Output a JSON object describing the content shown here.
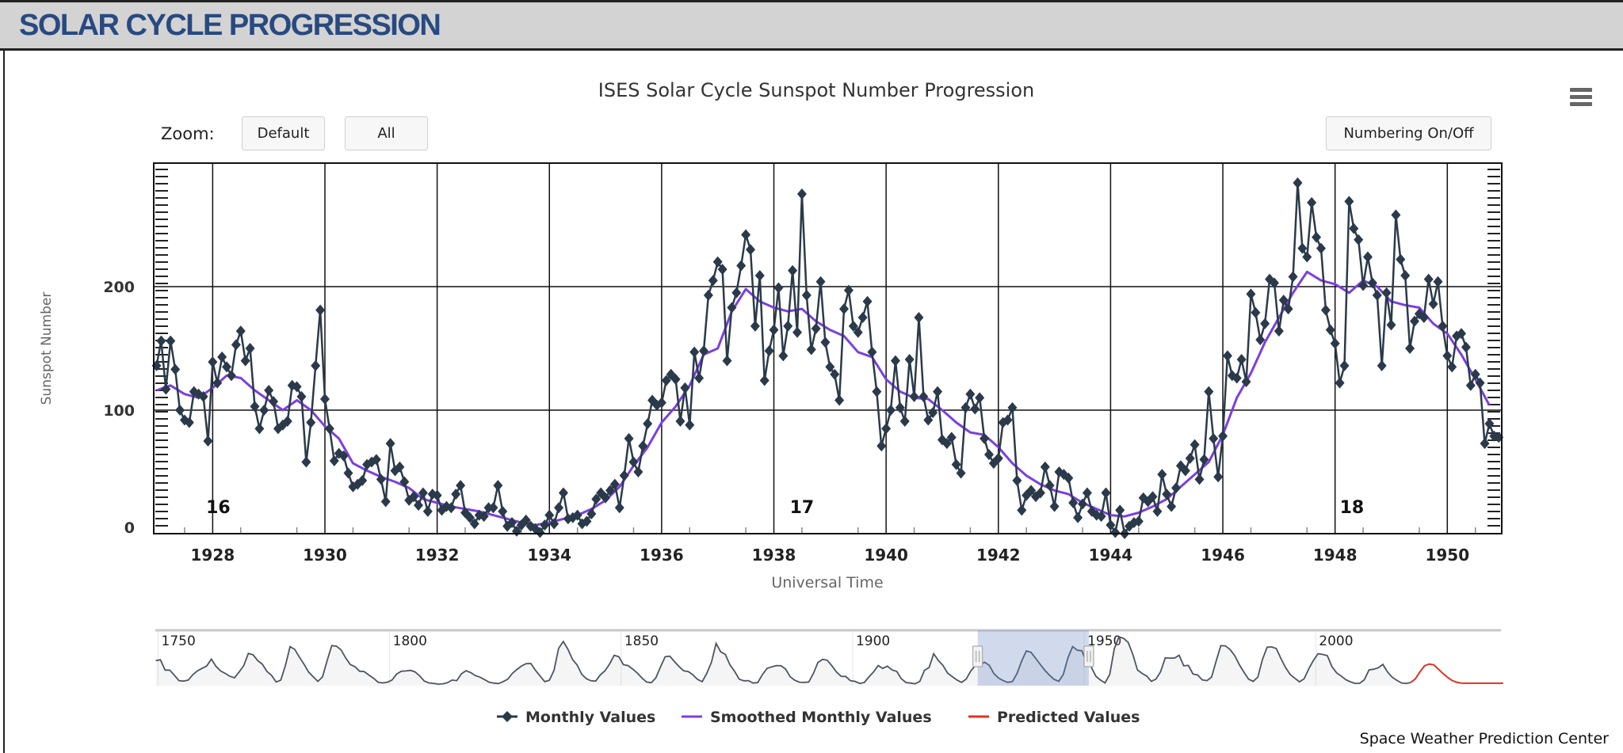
{
  "header": {
    "title": "SOLAR CYCLE PROGRESSION"
  },
  "toolbar": {
    "zoom_label": "Zoom:",
    "default_label": "Default",
    "all_label": "All",
    "numbering_label": "Numbering On/Off",
    "menu_icon": "hamburger-menu-icon"
  },
  "credit": "Space Weather Prediction Center",
  "colors": {
    "monthly": "#2b3a4a",
    "smoothed": "#7b3fe0",
    "predicted": "#e0321e",
    "title": "#284a80",
    "navigator_selection": "#6685c2"
  },
  "chart_data": {
    "type": "line",
    "title": "ISES Solar Cycle Sunspot Number Progression",
    "xlabel": "Universal Time",
    "ylabel": "Sunspot Number",
    "xlim": [
      1926.95,
      1950.97
    ],
    "ylim": [
      0,
      300
    ],
    "x_ticks": [
      "1928",
      "1930",
      "1932",
      "1934",
      "1936",
      "1938",
      "1940",
      "1942",
      "1944",
      "1946",
      "1948",
      "1950"
    ],
    "y_ticks": [
      "0",
      "100",
      "200"
    ],
    "grid": true,
    "legend_position": "bottom",
    "legend": [
      "Monthly Values",
      "Smoothed Monthly Values",
      "Predicted Values"
    ],
    "cycle_labels": [
      {
        "label": "16",
        "year": 1928.1
      },
      {
        "label": "17",
        "year": 1938.5
      },
      {
        "label": "18",
        "year": 1948.3
      }
    ],
    "monthly_values": {
      "1927": [
        136,
        156,
        117,
        156,
        133,
        100,
        92,
        90,
        115,
        113,
        111,
        75
      ],
      "1928": [
        139,
        122,
        143,
        135,
        128,
        153,
        164,
        140,
        150,
        103,
        85,
        100
      ],
      "1929": [
        116,
        107,
        85,
        88,
        91,
        120,
        119,
        111,
        58,
        90,
        136,
        181
      ],
      "1930": [
        109,
        85,
        59,
        65,
        63,
        49,
        38,
        40,
        43,
        56,
        58,
        60
      ],
      "1931": [
        44,
        26,
        73,
        51,
        54,
        42,
        27,
        30,
        23,
        33,
        18,
        32
      ],
      "1932": [
        31,
        19,
        22,
        21,
        32,
        39,
        17,
        13,
        8,
        15,
        14,
        21
      ],
      "1933": [
        21,
        39,
        18,
        6,
        9,
        2,
        7,
        11,
        6,
        4,
        1,
        7
      ],
      "1934": [
        15,
        8,
        21,
        33,
        12,
        13,
        15,
        8,
        10,
        16,
        28,
        33
      ],
      "1935": [
        29,
        35,
        40,
        21,
        47,
        77,
        58,
        50,
        71,
        89,
        108,
        104
      ],
      "1936": [
        106,
        124,
        129,
        125,
        91,
        118,
        88,
        147,
        126,
        148,
        193,
        205
      ],
      "1937": [
        220,
        214,
        140,
        183,
        195,
        217,
        242,
        230,
        168,
        209,
        124,
        148
      ],
      "1938": [
        165,
        199,
        144,
        168,
        213,
        163,
        275,
        193,
        149,
        166,
        204,
        155
      ],
      "1939": [
        135,
        129,
        108,
        182,
        197,
        168,
        163,
        175,
        188,
        147,
        115,
        71
      ],
      "1940": [
        85,
        100,
        140,
        102,
        91,
        141,
        111,
        175,
        111,
        92,
        98,
        115
      ],
      "1941": [
        76,
        73,
        78,
        56,
        49,
        102,
        113,
        101,
        110,
        77,
        64,
        57
      ],
      "1942": [
        61,
        90,
        92,
        102,
        43,
        19,
        31,
        35,
        30,
        33,
        54,
        39
      ],
      "1943": [
        22,
        50,
        48,
        45,
        25,
        13,
        24,
        33,
        18,
        15,
        14,
        33
      ],
      "1944": [
        7,
        1,
        19,
        0,
        6,
        9,
        10,
        29,
        26,
        30,
        18,
        48
      ],
      "1945": [
        32,
        22,
        37,
        55,
        51,
        61,
        72,
        44,
        60,
        115,
        77,
        46
      ],
      "1946": [
        79,
        144,
        128,
        126,
        141,
        123,
        194,
        179,
        157,
        170,
        206,
        203
      ],
      "1947": [
        164,
        189,
        182,
        208,
        284,
        231,
        224,
        268,
        240,
        231,
        181,
        165
      ],
      "1948": [
        154,
        122,
        136,
        269,
        247,
        238,
        201,
        224,
        203,
        193,
        136,
        195
      ],
      "1949": [
        169,
        258,
        222,
        209,
        150,
        172,
        178,
        175,
        206,
        186,
        204,
        168
      ],
      "1950": [
        144,
        135,
        160,
        162,
        151,
        120,
        129,
        122,
        73,
        89,
        79,
        78
      ]
    },
    "smoothed_quarterly": {
      "1927": [
        116,
        120,
        113,
        110
      ],
      "1928": [
        118,
        128,
        126,
        116
      ],
      "1929": [
        108,
        100,
        108,
        100
      ],
      "1930": [
        87,
        77,
        57,
        51
      ],
      "1931": [
        46,
        42,
        37,
        28
      ],
      "1932": [
        25,
        22,
        20,
        18
      ],
      "1933": [
        15,
        12,
        9,
        7
      ],
      "1934": [
        9,
        12,
        15,
        20
      ],
      "1935": [
        27,
        38,
        55,
        70
      ],
      "1936": [
        90,
        103,
        120,
        145
      ],
      "1937": [
        150,
        180,
        198,
        188
      ],
      "1938": [
        183,
        180,
        182,
        172
      ],
      "1939": [
        165,
        160,
        147,
        143
      ],
      "1940": [
        125,
        115,
        110,
        109
      ],
      "1941": [
        100,
        90,
        82,
        80
      ],
      "1942": [
        70,
        57,
        47,
        40
      ],
      "1943": [
        35,
        32,
        25,
        20
      ],
      "1944": [
        15,
        14,
        17,
        22
      ],
      "1945": [
        28,
        38,
        48,
        58
      ],
      "1946": [
        80,
        110,
        130,
        155
      ],
      "1947": [
        175,
        195,
        212,
        205
      ],
      "1948": [
        202,
        195,
        205,
        200
      ],
      "1949": [
        188,
        185,
        183,
        170
      ],
      "1950": [
        162,
        145,
        125,
        104
      ]
    },
    "navigator": {
      "xlim": [
        1749.4,
        2040
      ],
      "x_ticks": [
        "1750",
        "1800",
        "1850",
        "1900",
        "1950",
        "2000"
      ],
      "selected_range": [
        1927,
        1951
      ],
      "yearly_values": {
        "1749": 135,
        "1750": 139,
        "1751": 80,
        "1752": 80,
        "1753": 51,
        "1754": 20,
        "1755": 17,
        "1756": 23,
        "1757": 54,
        "1758": 76,
        "1759": 90,
        "1760": 104,
        "1761": 143,
        "1762": 102,
        "1763": 75,
        "1764": 61,
        "1765": 45,
        "1766": 36,
        "1767": 70,
        "1768": 106,
        "1769": 176,
        "1770": 168,
        "1771": 135,
        "1772": 114,
        "1773": 73,
        "1774": 50,
        "1775": 12,
        "1776": 23,
        "1777": 107,
        "1778": 215,
        "1779": 199,
        "1780": 155,
        "1781": 114,
        "1782": 69,
        "1783": 42,
        "1784": 16,
        "1785": 41,
        "1786": 134,
        "1787": 220,
        "1788": 217,
        "1789": 196,
        "1790": 150,
        "1791": 112,
        "1792": 100,
        "1793": 74,
        "1794": 72,
        "1795": 52,
        "1796": 34,
        "1797": 11,
        "1798": 7,
        "1799": 11,
        "1800": 23,
        "1801": 57,
        "1802": 74,
        "1803": 75,
        "1804": 79,
        "1805": 70,
        "1806": 47,
        "1807": 17,
        "1808": 7,
        "1809": 4,
        "1810": 0,
        "1811": 2,
        "1812": 8,
        "1813": 23,
        "1814": 20,
        "1815": 59,
        "1816": 77,
        "1817": 66,
        "1818": 49,
        "1819": 40,
        "1820": 26,
        "1821": 11,
        "1822": 6,
        "1823": 3,
        "1824": 14,
        "1825": 28,
        "1826": 61,
        "1827": 84,
        "1828": 104,
        "1829": 117,
        "1830": 118,
        "1831": 79,
        "1832": 46,
        "1833": 14,
        "1834": 22,
        "1835": 79,
        "1836": 205,
        "1837": 244,
        "1838": 200,
        "1839": 141,
        "1840": 109,
        "1841": 56,
        "1842": 31,
        "1843": 19,
        "1844": 17,
        "1845": 53,
        "1846": 76,
        "1847": 115,
        "1848": 165,
        "1849": 157,
        "1850": 111,
        "1851": 106,
        "1852": 86,
        "1853": 63,
        "1854": 35,
        "1855": 12,
        "1856": 8,
        "1857": 36,
        "1858": 99,
        "1859": 157,
        "1860": 160,
        "1861": 129,
        "1862": 100,
        "1863": 76,
        "1864": 72,
        "1865": 53,
        "1866": 27,
        "1867": 14,
        "1868": 62,
        "1869": 126,
        "1870": 233,
        "1871": 185,
        "1872": 170,
        "1873": 110,
        "1874": 73,
        "1875": 28,
        "1876": 19,
        "1877": 20,
        "1878": 6,
        "1879": 9,
        "1880": 54,
        "1881": 90,
        "1882": 99,
        "1883": 106,
        "1884": 105,
        "1885": 87,
        "1886": 42,
        "1887": 22,
        "1888": 11,
        "1889": 10,
        "1890": 12,
        "1891": 60,
        "1892": 124,
        "1893": 142,
        "1894": 137,
        "1895": 105,
        "1896": 70,
        "1897": 45,
        "1898": 44,
        "1899": 20,
        "1900": 16,
        "1901": 4,
        "1902": 9,
        "1903": 41,
        "1904": 70,
        "1905": 106,
        "1906": 90,
        "1907": 103,
        "1908": 81,
        "1909": 73,
        "1910": 31,
        "1911": 9,
        "1912": 6,
        "1913": 2,
        "1914": 16,
        "1915": 79,
        "1916": 95,
        "1917": 174,
        "1918": 135,
        "1919": 107,
        "1920": 63,
        "1921": 43,
        "1922": 24,
        "1923": 10,
        "1924": 28,
        "1925": 75,
        "1926": 107,
        "1927": 113,
        "1928": 125,
        "1929": 108,
        "1930": 60,
        "1931": 35,
        "1932": 20,
        "1933": 10,
        "1934": 15,
        "1935": 61,
        "1936": 132,
        "1937": 190,
        "1938": 182,
        "1939": 148,
        "1940": 113,
        "1941": 79,
        "1942": 51,
        "1943": 27,
        "1944": 16,
        "1945": 56,
        "1946": 152,
        "1947": 215,
        "1948": 194,
        "1949": 191,
        "1950": 119,
        "1951": 99,
        "1952": 46,
        "1953": 23,
        "1954": 7,
        "1955": 55,
        "1956": 202,
        "1957": 270,
        "1958": 262,
        "1959": 239,
        "1960": 170,
        "1961": 81,
        "1962": 61,
        "1963": 46,
        "1964": 16,
        "1965": 29,
        "1966": 71,
        "1967": 150,
        "1968": 149,
        "1969": 149,
        "1970": 165,
        "1971": 105,
        "1972": 107,
        "1973": 58,
        "1974": 52,
        "1975": 24,
        "1976": 20,
        "1977": 40,
        "1978": 133,
        "1979": 220,
        "1980": 219,
        "1981": 198,
        "1982": 163,
        "1983": 111,
        "1984": 68,
        "1985": 28,
        "1986": 16,
        "1987": 40,
        "1988": 142,
        "1989": 211,
        "1990": 213,
        "1991": 203,
        "1992": 145,
        "1993": 94,
        "1994": 55,
        "1995": 33,
        "1996": 13,
        "1997": 31,
        "1998": 88,
        "1999": 136,
        "2000": 174,
        "2001": 170,
        "2002": 163,
        "2003": 100,
        "2004": 65,
        "2005": 46,
        "2006": 25,
        "2007": 13,
        "2008": 4,
        "2009": 5,
        "2010": 25,
        "2011": 81,
        "2012": 85,
        "2013": 94,
        "2014": 113,
        "2015": 70,
        "2016": 40,
        "2017": 22,
        "2018": 7,
        "2019": 4,
        "2020": 9
      },
      "predicted_yearly": {
        "2020": 9,
        "2021": 30,
        "2022": 70,
        "2023": 105,
        "2024": 115,
        "2025": 110,
        "2026": 85,
        "2027": 60,
        "2028": 38,
        "2029": 20,
        "2030": 10,
        "2031": 6,
        "2032": 5,
        "2034": 5,
        "2036": 5,
        "2038": 5,
        "2040": 5
      }
    }
  }
}
